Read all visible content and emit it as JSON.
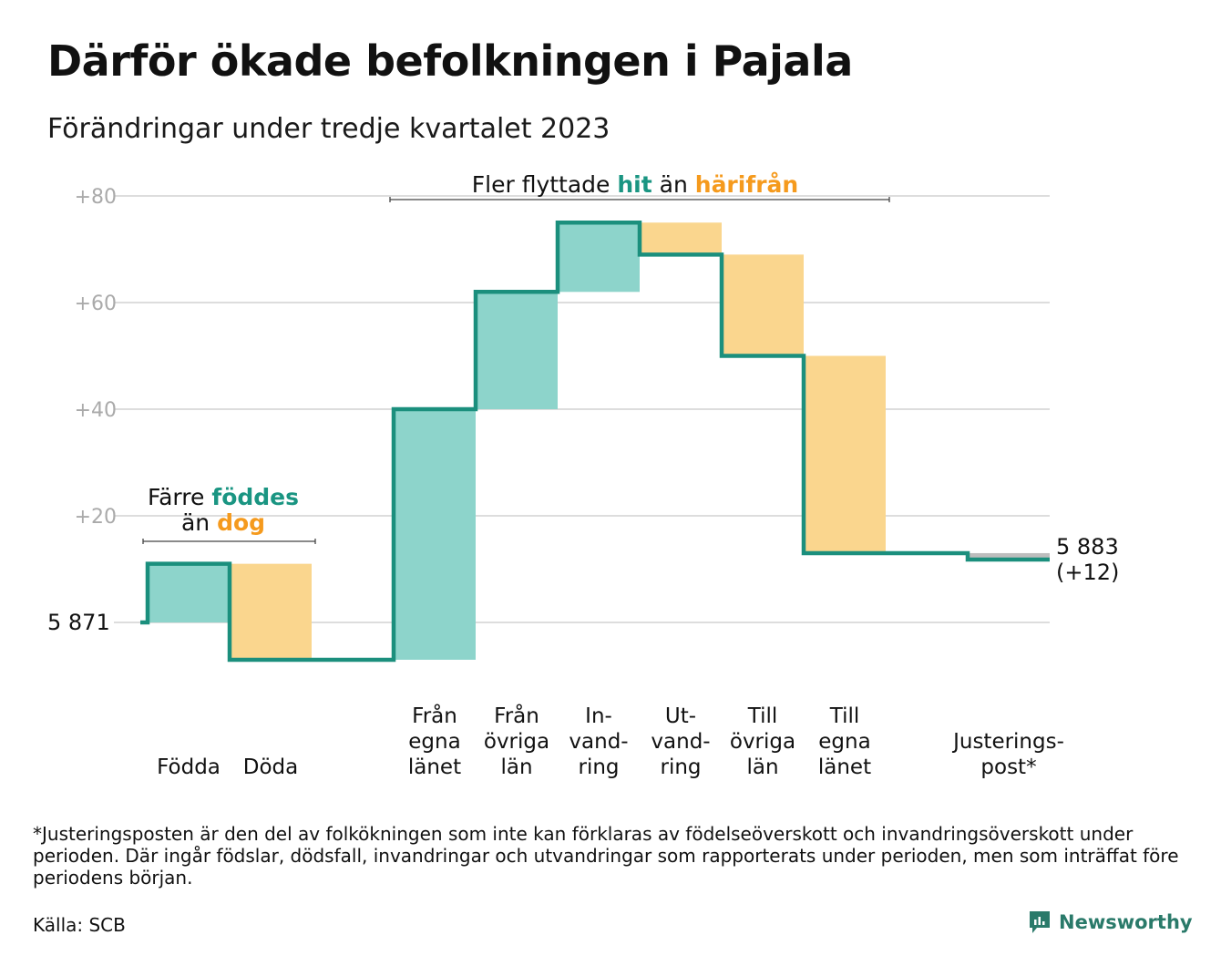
{
  "title": "Därför ökade befolkningen i Pajala",
  "subtitle": "Förändringar under tredje kvartalet 2023",
  "colors": {
    "increase": "#8dd4cb",
    "decrease": "#fad68e",
    "adjustment": "#bdbdbd",
    "line": "#1b8f7d",
    "teal_text": "#1a9582",
    "orange_text": "#f59a1d",
    "grid": "#dddddd",
    "tick_text": "#aaaaaa"
  },
  "chart_data": {
    "type": "waterfall",
    "start_value": 5871,
    "start_label": "5  871",
    "end_label_value": "5 883",
    "end_label_change": "(+12)",
    "ylim": [
      -12,
      80
    ],
    "yticks": [
      {
        "value": 20,
        "label": "+20"
      },
      {
        "value": 40,
        "label": "+40"
      },
      {
        "value": 60,
        "label": "+60"
      },
      {
        "value": 80,
        "label": "+80"
      }
    ],
    "grid": true,
    "steps": [
      {
        "label": [
          "Födda"
        ],
        "change": 11,
        "kind": "increase"
      },
      {
        "label": [
          "Döda"
        ],
        "change": -18,
        "kind": "decrease"
      },
      {
        "label": [],
        "change": 0,
        "kind": "none"
      },
      {
        "label": [
          "Från",
          "egna",
          "länet"
        ],
        "change": 47,
        "kind": "increase"
      },
      {
        "label": [
          "Från",
          "övriga",
          "län"
        ],
        "change": 22,
        "kind": "increase"
      },
      {
        "label": [
          "In-",
          "vand-",
          "ring"
        ],
        "change": 13,
        "kind": "increase"
      },
      {
        "label": [
          "Ut-",
          "vand-",
          "ring"
        ],
        "change": -6,
        "kind": "decrease"
      },
      {
        "label": [
          "Till",
          "övriga",
          "län"
        ],
        "change": -19,
        "kind": "decrease"
      },
      {
        "label": [
          "Till",
          "egna",
          "länet"
        ],
        "change": -37,
        "kind": "decrease"
      },
      {
        "label": [],
        "change": 0,
        "kind": "none"
      },
      {
        "label": [
          "Justerings-",
          "post*"
        ],
        "change": -1.2,
        "kind": "adjustment"
      }
    ],
    "annotations": {
      "births": {
        "line1_plain": "Färre ",
        "line1_colored": "föddes",
        "line2_plain": "än ",
        "line2_colored": "dog"
      },
      "migration": {
        "plain1": "Fler flyttade ",
        "colored1": "hit",
        "plain2": " än ",
        "colored2": "härifrån"
      }
    }
  },
  "footnote": "*Justeringsposten är den del av folkökningen som inte kan förklaras av födelseöverskott och invandringsöverskott under perioden. Där ingår födslar, dödsfall, invandringar och utvandringar som rapporterats under perioden, men som inträffat före periodens början.",
  "source": "Källa: SCB",
  "brand": "Newsworthy"
}
